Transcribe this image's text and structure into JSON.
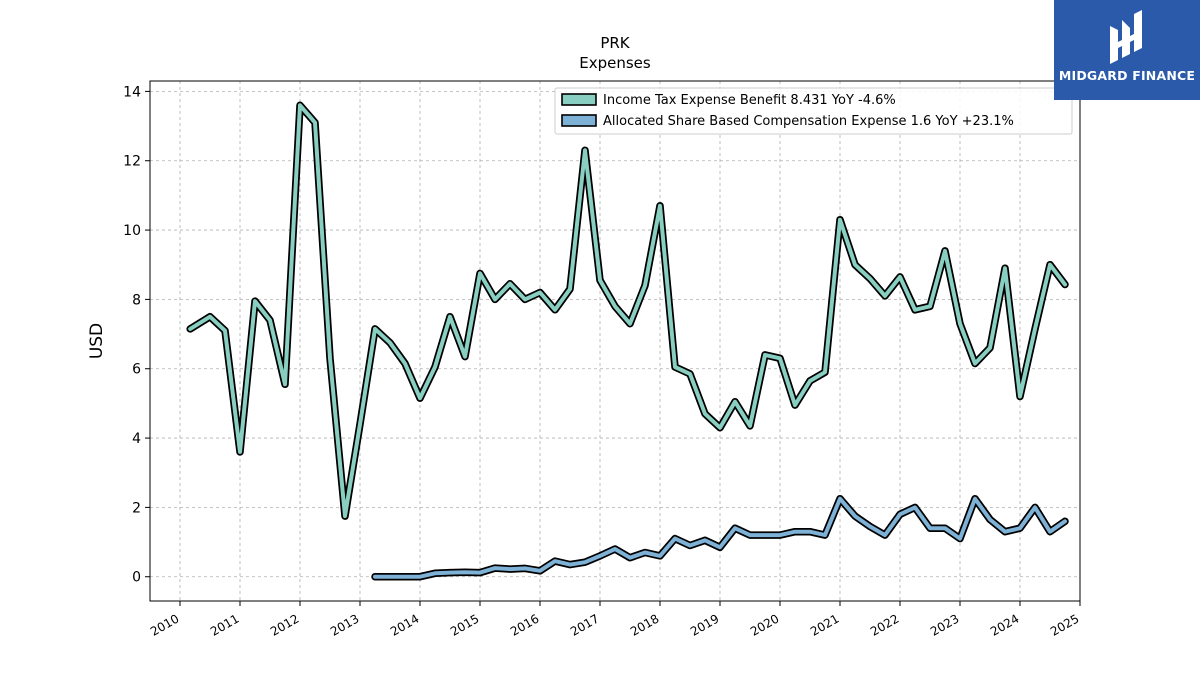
{
  "brand": {
    "name": "MIDGARD FINANCE",
    "color": "#2a5aa9",
    "icon": "midgard-logo-icon"
  },
  "chart_data": {
    "type": "line",
    "title": "PRK",
    "subtitle": "Expenses",
    "ylabel": "USD",
    "xlabel": "",
    "xlim": [
      2009.5,
      2025.0
    ],
    "ylim": [
      -0.7,
      14.3
    ],
    "x_ticks": [
      2010,
      2011,
      2012,
      2013,
      2014,
      2015,
      2016,
      2017,
      2018,
      2019,
      2020,
      2021,
      2022,
      2023,
      2024,
      2025
    ],
    "y_ticks": [
      0,
      2,
      4,
      6,
      8,
      10,
      12,
      14
    ],
    "grid": true,
    "legend_position": "top-right",
    "series": [
      {
        "name": "Income Tax Expense Benefit",
        "legend_label": "Income Tax Expense Benefit  8.431 YoY -4.6%",
        "color": "#88cfc1",
        "x": [
          2010.17,
          2010.5,
          2010.75,
          2011.0,
          2011.25,
          2011.5,
          2011.75,
          2012.0,
          2012.25,
          2012.5,
          2012.75,
          2013.0,
          2013.25,
          2013.5,
          2013.75,
          2014.0,
          2014.25,
          2014.5,
          2014.75,
          2015.0,
          2015.25,
          2015.5,
          2015.75,
          2016.0,
          2016.25,
          2016.5,
          2016.75,
          2017.0,
          2017.25,
          2017.5,
          2017.75,
          2018.0,
          2018.25,
          2018.5,
          2018.75,
          2019.0,
          2019.25,
          2019.5,
          2019.75,
          2020.0,
          2020.25,
          2020.5,
          2020.75,
          2021.0,
          2021.25,
          2021.5,
          2021.75,
          2022.0,
          2022.25,
          2022.5,
          2022.75,
          2023.0,
          2023.25,
          2023.5,
          2023.75,
          2024.0,
          2024.25,
          2024.5,
          2024.75
        ],
        "values": [
          7.15,
          7.5,
          7.1,
          3.6,
          7.95,
          7.4,
          5.55,
          13.6,
          13.1,
          6.3,
          1.75,
          4.4,
          7.15,
          6.75,
          6.15,
          5.15,
          6.05,
          7.5,
          6.35,
          8.75,
          8.0,
          8.45,
          8.0,
          8.2,
          7.7,
          8.3,
          12.3,
          8.55,
          7.8,
          7.3,
          8.4,
          10.7,
          6.05,
          5.85,
          4.7,
          4.3,
          5.05,
          4.35,
          6.4,
          6.3,
          4.95,
          5.65,
          5.9,
          10.3,
          9.0,
          8.6,
          8.1,
          8.65,
          7.7,
          7.8,
          9.4,
          7.3,
          6.15,
          6.6,
          8.9,
          5.2,
          7.15,
          9.0,
          8.43
        ]
      },
      {
        "name": "Allocated Share Based Compensation Expense",
        "legend_label": "Allocated Share Based Compensation Expense  1.6 YoY +23.1%",
        "color": "#7eb1d6",
        "x": [
          2013.25,
          2013.5,
          2013.75,
          2014.0,
          2014.25,
          2014.5,
          2014.75,
          2015.0,
          2015.25,
          2015.5,
          2015.75,
          2016.0,
          2016.25,
          2016.5,
          2016.75,
          2017.0,
          2017.25,
          2017.5,
          2017.75,
          2018.0,
          2018.25,
          2018.5,
          2018.75,
          2019.0,
          2019.25,
          2019.5,
          2019.75,
          2020.0,
          2020.25,
          2020.5,
          2020.75,
          2021.0,
          2021.25,
          2021.5,
          2021.75,
          2022.0,
          2022.25,
          2022.5,
          2022.75,
          2023.0,
          2023.25,
          2023.5,
          2023.75,
          2024.0,
          2024.25,
          2024.5,
          2024.75
        ],
        "values": [
          0.0,
          0.0,
          0.0,
          0.0,
          0.1,
          0.12,
          0.13,
          0.12,
          0.25,
          0.22,
          0.24,
          0.17,
          0.45,
          0.35,
          0.42,
          0.6,
          0.8,
          0.55,
          0.7,
          0.6,
          1.1,
          0.9,
          1.05,
          0.85,
          1.4,
          1.2,
          1.2,
          1.2,
          1.3,
          1.3,
          1.2,
          2.25,
          1.75,
          1.45,
          1.2,
          1.8,
          2.0,
          1.4,
          1.4,
          1.1,
          2.25,
          1.65,
          1.3,
          1.4,
          2.0,
          1.3,
          1.6
        ]
      }
    ]
  }
}
